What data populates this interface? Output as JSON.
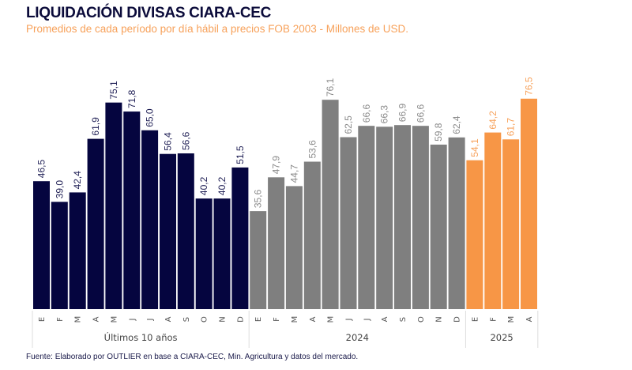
{
  "header": {
    "title": "LIQUIDACIÓN DIVISAS CIARA-CEC",
    "subtitle": "Promedios de cada período por día hábil a precios FOB 2003 - Millones de USD."
  },
  "footer": {
    "source": "Fuente: Elaborado por OUTLIER en base a CIARA-CEC, Min. Agricultura y datos del mercado."
  },
  "chart_data": {
    "type": "bar",
    "title": "LIQUIDACIÓN DIVISAS CIARA-CEC",
    "subtitle": "Promedios de cada período por día hábil a precios FOB 2003 - Millones de USD.",
    "xlabel": "",
    "ylabel": "",
    "ylim": [
      0,
      80
    ],
    "grid": false,
    "legend": "none",
    "value_label_format": "decimal-comma",
    "groups": [
      {
        "name": "Últimos 10 años",
        "color": "#05053f",
        "label_color": "#1f1f55",
        "categories": [
          "E",
          "F",
          "M",
          "A",
          "M",
          "J",
          "J",
          "A",
          "S",
          "O",
          "N",
          "D"
        ],
        "values": [
          46.5,
          39.0,
          42.4,
          61.9,
          75.1,
          71.8,
          65.0,
          56.4,
          56.6,
          40.2,
          40.2,
          51.5
        ]
      },
      {
        "name": "2024",
        "color": "#7f7f7f",
        "label_color": "#8a8a8a",
        "categories": [
          "E",
          "F",
          "M",
          "A",
          "M",
          "J",
          "J",
          "A",
          "S",
          "O",
          "N",
          "D"
        ],
        "values": [
          35.6,
          47.9,
          44.7,
          53.6,
          76.1,
          62.5,
          66.6,
          66.3,
          66.9,
          66.6,
          59.8,
          62.4
        ]
      },
      {
        "name": "2025",
        "color": "#f79646",
        "label_color": "#f7a15a",
        "categories": [
          "E",
          "F",
          "M",
          "A"
        ],
        "values": [
          54.1,
          64.2,
          61.7,
          76.5
        ]
      }
    ]
  }
}
